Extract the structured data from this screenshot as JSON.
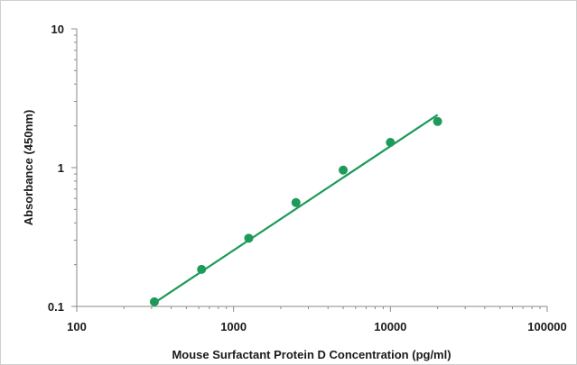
{
  "chart_data": {
    "type": "scatter",
    "title": "",
    "xlabel": "Mouse Surfactant Protein D Concentration (pg/ml)",
    "ylabel": "Absorbance (450nm)",
    "x_scale": "log",
    "y_scale": "log",
    "xlim": [
      100,
      100000
    ],
    "ylim": [
      0.1,
      10
    ],
    "x_ticks": [
      "100",
      "1000",
      "10000",
      "100000"
    ],
    "y_ticks": [
      "0.1",
      "1",
      "10"
    ],
    "grid": false,
    "legend": "none",
    "colors": {
      "marker": "#1e9a5a",
      "line": "#1e9a5a",
      "axis": "#8a8a8a"
    },
    "series": [
      {
        "points": [
          {
            "x": 312.5,
            "y": 0.108
          },
          {
            "x": 625,
            "y": 0.185
          },
          {
            "x": 1250,
            "y": 0.31
          },
          {
            "x": 2500,
            "y": 0.56
          },
          {
            "x": 5000,
            "y": 0.96
          },
          {
            "x": 10000,
            "y": 1.52
          },
          {
            "x": 20000,
            "y": 2.15
          }
        ]
      }
    ],
    "fit_line": {
      "x": [
        312.5,
        20000
      ],
      "y": [
        0.106,
        2.4
      ]
    }
  }
}
